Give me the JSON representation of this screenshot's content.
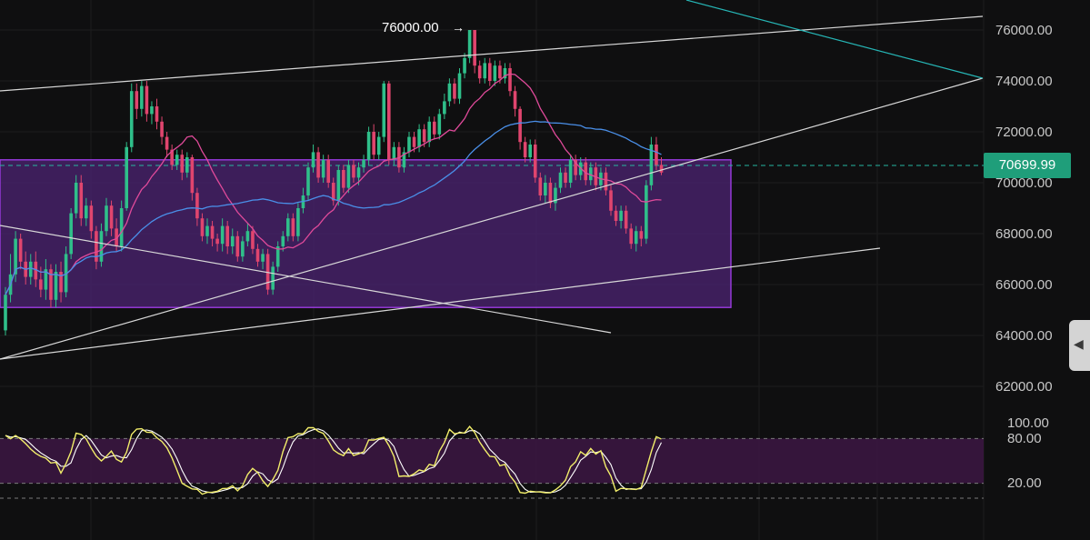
{
  "chart_data": [
    {
      "type": "candlestick",
      "title": "",
      "price_axis": {
        "ticks": [
          "76000.00",
          "74000.00",
          "72000.00",
          "70000.00",
          "68000.00",
          "66000.00",
          "64000.00",
          "62000.00"
        ],
        "ylim": [
          61000,
          77200
        ]
      },
      "current_price": "70699.99",
      "high_annotation": "76000.00",
      "candles": [
        [
          64200,
          65600,
          64000,
          65900
        ],
        [
          65600,
          66400,
          65300,
          67200
        ],
        [
          66400,
          67800,
          66100,
          68100
        ],
        [
          67800,
          66900,
          66600,
          68000
        ],
        [
          66900,
          66300,
          66000,
          67300
        ],
        [
          66300,
          66900,
          66000,
          67200
        ],
        [
          66900,
          66200,
          65900,
          67300
        ],
        [
          66200,
          65800,
          65500,
          66700
        ],
        [
          65800,
          66600,
          65400,
          67000
        ],
        [
          66600,
          65400,
          65100,
          66800
        ],
        [
          65400,
          66500,
          65100,
          66800
        ],
        [
          66500,
          65700,
          65300,
          66900
        ],
        [
          65700,
          67200,
          65500,
          67500
        ],
        [
          67200,
          68800,
          67000,
          69000
        ],
        [
          68800,
          70000,
          68600,
          70300
        ],
        [
          70000,
          68600,
          68300,
          70300
        ],
        [
          68600,
          69100,
          68300,
          69400
        ],
        [
          69100,
          68100,
          67800,
          69300
        ],
        [
          68100,
          66900,
          66600,
          68300
        ],
        [
          66900,
          68100,
          66700,
          68400
        ],
        [
          68100,
          69100,
          67900,
          69400
        ],
        [
          69100,
          68200,
          67900,
          69300
        ],
        [
          68200,
          67500,
          67300,
          68600
        ],
        [
          67500,
          69000,
          67300,
          69300
        ],
        [
          69000,
          71400,
          68900,
          71600
        ],
        [
          71400,
          73600,
          71200,
          73900
        ],
        [
          73600,
          72900,
          72500,
          73900
        ],
        [
          72900,
          73800,
          72600,
          74000
        ],
        [
          73800,
          72700,
          72400,
          74000
        ],
        [
          72700,
          73000,
          72300,
          73200
        ],
        [
          73000,
          72400,
          72100,
          73300
        ],
        [
          72400,
          71800,
          71500,
          72600
        ],
        [
          71800,
          71300,
          71000,
          72000
        ],
        [
          71300,
          70700,
          70500,
          71500
        ],
        [
          70700,
          71100,
          70500,
          71300
        ],
        [
          71100,
          70400,
          70100,
          71300
        ],
        [
          70400,
          71000,
          70200,
          71200
        ],
        [
          71000,
          69600,
          69300,
          71100
        ],
        [
          69600,
          68600,
          68300,
          69800
        ],
        [
          68600,
          67900,
          67700,
          68800
        ],
        [
          67900,
          68300,
          67600,
          68600
        ],
        [
          68300,
          67800,
          67500,
          68500
        ],
        [
          67800,
          67600,
          67300,
          68000
        ],
        [
          67600,
          68300,
          67300,
          68600
        ],
        [
          68300,
          67500,
          67200,
          68500
        ],
        [
          67500,
          67900,
          67200,
          68200
        ],
        [
          67900,
          67100,
          66900,
          68100
        ],
        [
          67100,
          67700,
          66900,
          67900
        ],
        [
          67700,
          68100,
          67500,
          68400
        ],
        [
          68100,
          67400,
          67200,
          68300
        ],
        [
          67400,
          66900,
          66700,
          67600
        ],
        [
          66900,
          67200,
          66600,
          67400
        ],
        [
          67200,
          65800,
          65600,
          67400
        ],
        [
          65800,
          66700,
          65600,
          66900
        ],
        [
          66700,
          67500,
          66500,
          67700
        ],
        [
          67500,
          67900,
          67300,
          68100
        ],
        [
          67900,
          68600,
          67700,
          68800
        ],
        [
          68600,
          67900,
          67700,
          68800
        ],
        [
          67900,
          69000,
          67700,
          69200
        ],
        [
          69000,
          69500,
          68800,
          69800
        ],
        [
          69500,
          70600,
          69300,
          70800
        ],
        [
          70600,
          71200,
          70400,
          71500
        ],
        [
          71200,
          70200,
          70000,
          71400
        ],
        [
          70200,
          70900,
          70000,
          71100
        ],
        [
          70900,
          70000,
          69800,
          71100
        ],
        [
          70000,
          69300,
          69100,
          70200
        ],
        [
          69300,
          70500,
          69100,
          70700
        ],
        [
          70500,
          69800,
          69600,
          70700
        ],
        [
          69800,
          70700,
          69600,
          70900
        ],
        [
          70700,
          70200,
          70000,
          70900
        ],
        [
          70200,
          70600,
          69900,
          70800
        ],
        [
          70600,
          70900,
          70400,
          71100
        ],
        [
          70900,
          72000,
          70700,
          72200
        ],
        [
          72000,
          71100,
          70900,
          72300
        ],
        [
          71100,
          71800,
          70900,
          72000
        ],
        [
          71800,
          73900,
          71600,
          74000
        ],
        [
          73900,
          70900,
          70700,
          74000
        ],
        [
          70900,
          71400,
          70700,
          71600
        ],
        [
          71400,
          70600,
          70400,
          71600
        ],
        [
          70600,
          71200,
          70400,
          71400
        ],
        [
          71200,
          71800,
          71000,
          72000
        ],
        [
          71800,
          71400,
          71200,
          72000
        ],
        [
          71400,
          72100,
          71200,
          72300
        ],
        [
          72100,
          71600,
          71400,
          72300
        ],
        [
          71600,
          72400,
          71400,
          72600
        ],
        [
          72400,
          71900,
          71700,
          72600
        ],
        [
          71900,
          72700,
          71700,
          72900
        ],
        [
          72700,
          73200,
          72500,
          73500
        ],
        [
          73200,
          73900,
          73000,
          74100
        ],
        [
          73900,
          73300,
          73100,
          74100
        ],
        [
          73300,
          74300,
          73100,
          74500
        ],
        [
          74300,
          74900,
          74100,
          75100
        ],
        [
          74900,
          76000,
          74700,
          76000
        ],
        [
          76000,
          74600,
          74300,
          76000
        ],
        [
          74600,
          74100,
          73900,
          74800
        ],
        [
          74100,
          74700,
          73900,
          74900
        ],
        [
          74700,
          74000,
          73800,
          74900
        ],
        [
          74000,
          74600,
          73800,
          74800
        ],
        [
          74600,
          74100,
          73900,
          74800
        ],
        [
          74100,
          74500,
          73900,
          74700
        ],
        [
          74500,
          73600,
          73400,
          74700
        ],
        [
          73600,
          72900,
          72600,
          73800
        ],
        [
          72900,
          71600,
          71300,
          73000
        ],
        [
          71600,
          71000,
          70800,
          71800
        ],
        [
          71000,
          71500,
          70800,
          71700
        ],
        [
          71500,
          70200,
          70000,
          71700
        ],
        [
          70200,
          69500,
          69300,
          70400
        ],
        [
          69500,
          70000,
          69200,
          70300
        ],
        [
          70000,
          69200,
          69000,
          70200
        ],
        [
          69200,
          69800,
          68900,
          70000
        ],
        [
          69800,
          70400,
          69600,
          70600
        ],
        [
          70400,
          70000,
          69800,
          70600
        ],
        [
          70000,
          70900,
          69800,
          71100
        ],
        [
          70900,
          70300,
          70100,
          71100
        ],
        [
          70300,
          70800,
          70100,
          71000
        ],
        [
          70800,
          70100,
          69900,
          71000
        ],
        [
          70100,
          70600,
          69900,
          70800
        ],
        [
          70600,
          69900,
          69700,
          70800
        ],
        [
          69900,
          70400,
          69700,
          70600
        ],
        [
          70400,
          69700,
          69500,
          70600
        ],
        [
          69700,
          68900,
          68700,
          69900
        ],
        [
          68900,
          68500,
          68300,
          69100
        ],
        [
          68500,
          68900,
          68200,
          69100
        ],
        [
          68900,
          68200,
          68000,
          69100
        ],
        [
          68200,
          67600,
          67400,
          68400
        ],
        [
          67600,
          68100,
          67300,
          68300
        ],
        [
          68100,
          67800,
          67500,
          68300
        ],
        [
          67800,
          69900,
          67600,
          70100
        ],
        [
          69900,
          71500,
          69700,
          71800
        ],
        [
          71500,
          70700,
          70500,
          71800
        ],
        [
          70700,
          70400,
          70300,
          71000
        ]
      ],
      "box": {
        "from_index": 0,
        "to_index": 182,
        "top": 70900,
        "bottom": 65100
      },
      "stoch_axis": {
        "ticks": [
          "100.00",
          "80.00",
          "20.00"
        ],
        "ylim": [
          0,
          100
        ]
      }
    }
  ],
  "colors": {
    "up": "#2fbf8a",
    "down": "#e0456e",
    "ma_pink": "#e04a9a",
    "ma_blue": "#4a8fe8",
    "trend": "#d8d8d8",
    "cyan": "#26b5b5",
    "box_fill": "#4a2370",
    "box_stroke": "#9b3be0",
    "stoch_k": "#f2ee6a",
    "stoch_d": "#ffffff",
    "price_tag": "#1f9e7a"
  },
  "scroll_handle_icon": "chevron-left-icon"
}
